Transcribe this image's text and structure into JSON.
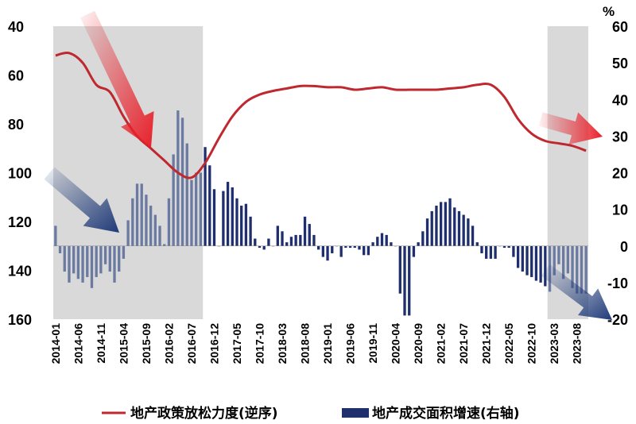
{
  "chart_data": {
    "type": "bar+line",
    "title": "",
    "x_tick_labels": [
      "2014-01",
      "2014-06",
      "2014-11",
      "2015-04",
      "2015-09",
      "2016-02",
      "2016-07",
      "2016-12",
      "2017-05",
      "2017-10",
      "2018-03",
      "2018-08",
      "2019-01",
      "2019-06",
      "2019-11",
      "2020-04",
      "2020-09",
      "2021-02",
      "2021-07",
      "2021-12",
      "2022-05",
      "2022-10",
      "2023-03",
      "2023-08"
    ],
    "x_start": "2014-01",
    "x_end": "2023-10",
    "left_axis": {
      "ylim": [
        40,
        160
      ],
      "inverted": true,
      "ticks": [
        "40",
        "60",
        "80",
        "100",
        "120",
        "140",
        "160"
      ]
    },
    "right_axis": {
      "unit": "%",
      "ylim": [
        -20,
        60
      ],
      "ticks": [
        "60",
        "50",
        "40",
        "30",
        "20",
        "10",
        "0",
        "-10",
        "-20"
      ]
    },
    "shaded_regions": [
      {
        "start": "2014-01",
        "end": "2016-09"
      },
      {
        "start": "2023-02",
        "end": "2023-10"
      }
    ],
    "colors": {
      "line": "#C0282F",
      "bar": "#1F2F6E",
      "bar_in_shade": "#6B7AA1",
      "shade": "#D9D9D9",
      "arrow_red": "#E8202A",
      "arrow_blue": "#1F3A78"
    },
    "series": [
      {
        "name": "地产政策放松力度(逆序)",
        "axis": "left",
        "style": "line",
        "points": [
          [
            "2014-01",
            52
          ],
          [
            "2014-04",
            51
          ],
          [
            "2014-07",
            55
          ],
          [
            "2014-10",
            64
          ],
          [
            "2015-01",
            67
          ],
          [
            "2015-04",
            77
          ],
          [
            "2015-07",
            85
          ],
          [
            "2015-10",
            90
          ],
          [
            "2016-01",
            95
          ],
          [
            "2016-04",
            100
          ],
          [
            "2016-07",
            102
          ],
          [
            "2016-10",
            96
          ],
          [
            "2017-01",
            86
          ],
          [
            "2017-04",
            77
          ],
          [
            "2017-07",
            71
          ],
          [
            "2017-10",
            68
          ],
          [
            "2018-01",
            66.5
          ],
          [
            "2018-04",
            65.5
          ],
          [
            "2018-07",
            64.5
          ],
          [
            "2018-10",
            64.5
          ],
          [
            "2019-01",
            65
          ],
          [
            "2019-04",
            65
          ],
          [
            "2019-07",
            66
          ],
          [
            "2019-10",
            65.5
          ],
          [
            "2020-01",
            65
          ],
          [
            "2020-04",
            66
          ],
          [
            "2020-07",
            66
          ],
          [
            "2020-10",
            66
          ],
          [
            "2021-01",
            66
          ],
          [
            "2021-04",
            65.5
          ],
          [
            "2021-07",
            65
          ],
          [
            "2021-10",
            64
          ],
          [
            "2022-01",
            64
          ],
          [
            "2022-04",
            69
          ],
          [
            "2022-07",
            78
          ],
          [
            "2022-10",
            84
          ],
          [
            "2023-01",
            87
          ],
          [
            "2023-04",
            88
          ],
          [
            "2023-07",
            89
          ],
          [
            "2023-10",
            91
          ]
        ]
      },
      {
        "name": "地产成交面积增速(右轴)",
        "axis": "right",
        "style": "bar",
        "points": [
          [
            "2014-01",
            5.5
          ],
          [
            "2014-02",
            -2
          ],
          [
            "2014-03",
            -7
          ],
          [
            "2014-04",
            -10
          ],
          [
            "2014-05",
            -7.5
          ],
          [
            "2014-06",
            -9
          ],
          [
            "2014-07",
            -10
          ],
          [
            "2014-08",
            -8.5
          ],
          [
            "2014-09",
            -11.5
          ],
          [
            "2014-10",
            -8.5
          ],
          [
            "2014-11",
            -7.5
          ],
          [
            "2014-12",
            -5
          ],
          [
            "2015-01",
            -7
          ],
          [
            "2015-02",
            -10
          ],
          [
            "2015-03",
            -7
          ],
          [
            "2015-04",
            -3.5
          ],
          [
            "2015-05",
            7
          ],
          [
            "2015-06",
            13
          ],
          [
            "2015-07",
            17
          ],
          [
            "2015-08",
            17
          ],
          [
            "2015-09",
            14
          ],
          [
            "2015-10",
            11
          ],
          [
            "2015-11",
            8.5
          ],
          [
            "2015-12",
            5.5
          ],
          [
            "2016-01",
            0.5
          ],
          [
            "2016-02",
            13
          ],
          [
            "2016-03",
            25
          ],
          [
            "2016-04",
            37
          ],
          [
            "2016-05",
            35
          ],
          [
            "2016-06",
            28
          ],
          [
            "2016-07",
            18
          ],
          [
            "2016-08",
            20
          ],
          [
            "2016-09",
            20
          ],
          [
            "2016-10",
            27
          ],
          [
            "2016-11",
            22
          ],
          [
            "2016-12",
            15.5
          ],
          [
            "2017-01",
            0
          ],
          [
            "2017-02",
            15
          ],
          [
            "2017-03",
            17.5
          ],
          [
            "2017-04",
            16
          ],
          [
            "2017-05",
            13
          ],
          [
            "2017-06",
            11
          ],
          [
            "2017-07",
            11.5
          ],
          [
            "2017-08",
            8
          ],
          [
            "2017-09",
            2
          ],
          [
            "2017-10",
            -0.5
          ],
          [
            "2017-11",
            -1
          ],
          [
            "2017-12",
            2
          ],
          [
            "2018-01",
            0
          ],
          [
            "2018-02",
            5.5
          ],
          [
            "2018-03",
            4
          ],
          [
            "2018-04",
            1
          ],
          [
            "2018-05",
            2.5
          ],
          [
            "2018-06",
            3
          ],
          [
            "2018-07",
            3
          ],
          [
            "2018-08",
            8
          ],
          [
            "2018-09",
            6
          ],
          [
            "2018-10",
            3
          ],
          [
            "2018-11",
            -1
          ],
          [
            "2018-12",
            -3
          ],
          [
            "2019-01",
            -4
          ],
          [
            "2019-02",
            -2
          ],
          [
            "2019-03",
            0
          ],
          [
            "2019-04",
            -3
          ],
          [
            "2019-05",
            -0.5
          ],
          [
            "2019-06",
            -0.5
          ],
          [
            "2019-07",
            -0.5
          ],
          [
            "2019-08",
            -1
          ],
          [
            "2019-09",
            -2.5
          ],
          [
            "2019-10",
            -2.5
          ],
          [
            "2019-11",
            1
          ],
          [
            "2019-12",
            2.5
          ],
          [
            "2020-01",
            3.5
          ],
          [
            "2020-02",
            3
          ],
          [
            "2020-03",
            1
          ],
          [
            "2020-04",
            0
          ],
          [
            "2020-05",
            -13
          ],
          [
            "2020-06",
            -19
          ],
          [
            "2020-07",
            -19
          ],
          [
            "2020-08",
            -3
          ],
          [
            "2020-09",
            1
          ],
          [
            "2020-10",
            4
          ],
          [
            "2020-11",
            7.5
          ],
          [
            "2020-12",
            9.5
          ],
          [
            "2021-01",
            11
          ],
          [
            "2021-02",
            12
          ],
          [
            "2021-03",
            12
          ],
          [
            "2021-04",
            13
          ],
          [
            "2021-05",
            10.5
          ],
          [
            "2021-06",
            9.5
          ],
          [
            "2021-07",
            8.5
          ],
          [
            "2021-08",
            7.5
          ],
          [
            "2021-09",
            5.5
          ],
          [
            "2021-10",
            1
          ],
          [
            "2021-11",
            -2
          ],
          [
            "2021-12",
            -3.5
          ],
          [
            "2022-01",
            -3.5
          ],
          [
            "2022-02",
            -3.5
          ],
          [
            "2022-03",
            0
          ],
          [
            "2022-04",
            -0.5
          ],
          [
            "2022-05",
            -0.5
          ],
          [
            "2022-06",
            -3
          ],
          [
            "2022-07",
            -6
          ],
          [
            "2022-08",
            -7
          ],
          [
            "2022-09",
            -8
          ],
          [
            "2022-10",
            -8.5
          ],
          [
            "2022-11",
            -9.5
          ],
          [
            "2022-12",
            -10
          ],
          [
            "2023-01",
            -11
          ],
          [
            "2023-02",
            -12.5
          ],
          [
            "2023-03",
            -8
          ],
          [
            "2023-04",
            -5
          ],
          [
            "2023-05",
            -9
          ],
          [
            "2023-06",
            -7.5
          ],
          [
            "2023-07",
            -11.5
          ],
          [
            "2023-08",
            -13
          ],
          [
            "2023-09",
            -13
          ],
          [
            "2023-10",
            -13
          ]
        ]
      }
    ],
    "legend": {
      "placement": "bottom",
      "entries": [
        "地产政策放松力度(逆序)",
        "地产成交面积增速(右轴)"
      ]
    }
  }
}
